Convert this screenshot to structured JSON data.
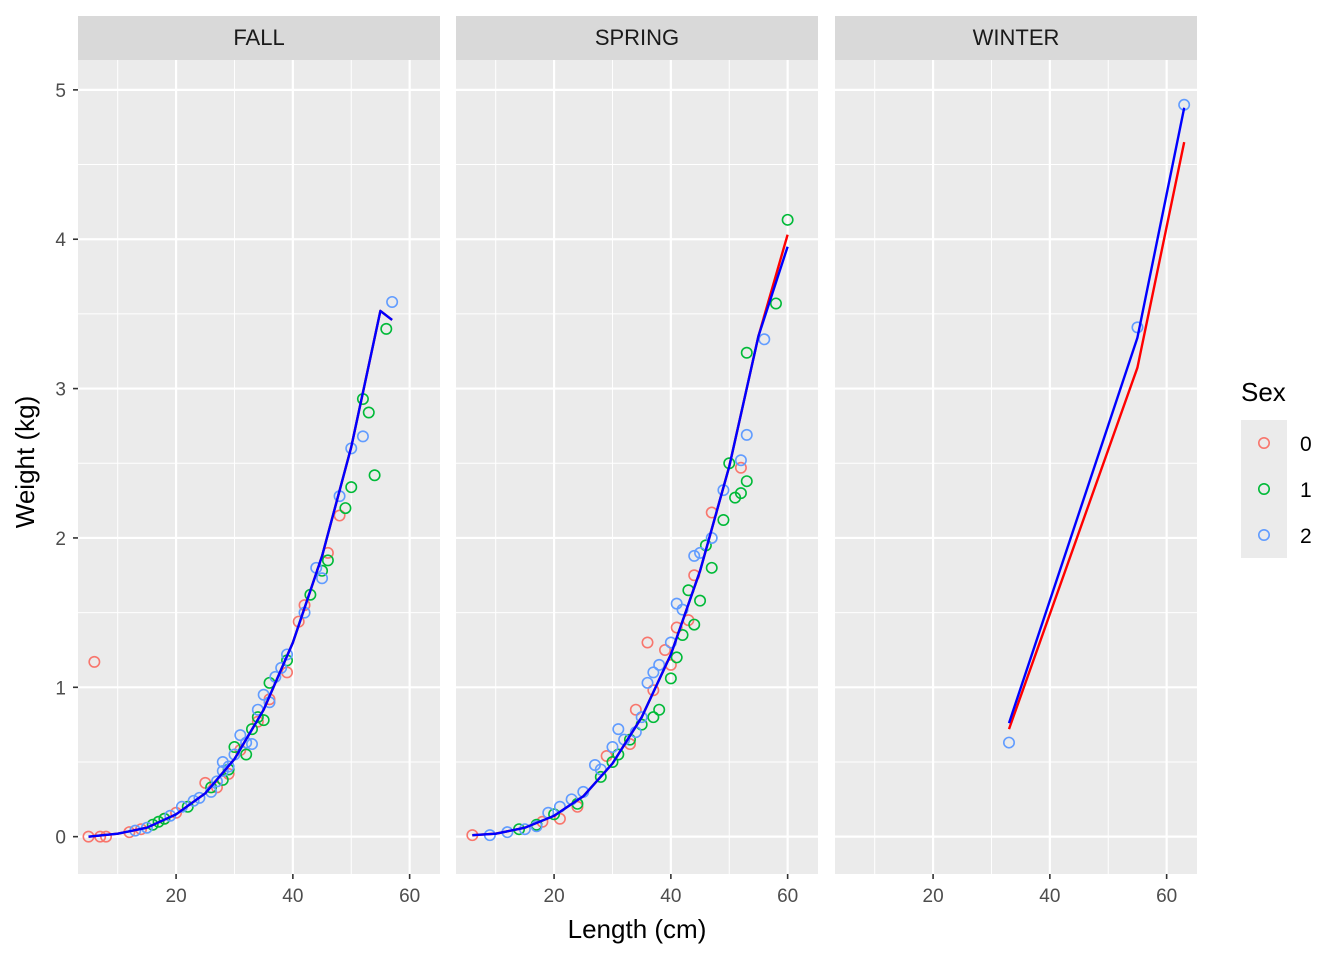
{
  "chart_data": {
    "type": "scatter",
    "xlabel": "Length (cm)",
    "ylabel": "Weight (kg)",
    "xlim": [
      3.2,
      65.2
    ],
    "ylim": [
      -0.25,
      5.2
    ],
    "x_ticks": [
      20,
      40,
      60
    ],
    "y_ticks": [
      0,
      1,
      2,
      3,
      4,
      5
    ],
    "grid": true,
    "legend": {
      "title": "Sex",
      "position": "right",
      "entries": [
        {
          "label": "0",
          "color": "#F8766D"
        },
        {
          "label": "1",
          "color": "#00BA38"
        },
        {
          "label": "2",
          "color": "#619CFF"
        }
      ]
    },
    "fit_colors": {
      "red": "#FF0000",
      "blue": "#0000FF"
    },
    "facets": [
      {
        "strip": "FALL",
        "points": {
          "0": [
            [
              6,
              1.17
            ],
            [
              5,
              0
            ],
            [
              7,
              0
            ],
            [
              8,
              0
            ],
            [
              12,
              0.03
            ],
            [
              14,
              0.05
            ],
            [
              18,
              0.12
            ],
            [
              20,
              0.16
            ],
            [
              25,
              0.36
            ],
            [
              27,
              0.33
            ],
            [
              29,
              0.42
            ],
            [
              31,
              0.58
            ],
            [
              34,
              0.77
            ],
            [
              36,
              0.92
            ],
            [
              39,
              1.1
            ],
            [
              41,
              1.44
            ],
            [
              42,
              1.55
            ],
            [
              46,
              1.9
            ],
            [
              48,
              2.15
            ]
          ],
          "1": [
            [
              16,
              0.08
            ],
            [
              17,
              0.1
            ],
            [
              18,
              0.12
            ],
            [
              22,
              0.2
            ],
            [
              26,
              0.33
            ],
            [
              28,
              0.38
            ],
            [
              29,
              0.45
            ],
            [
              30,
              0.6
            ],
            [
              32,
              0.55
            ],
            [
              33,
              0.72
            ],
            [
              34,
              0.8
            ],
            [
              35,
              0.78
            ],
            [
              36,
              1.03
            ],
            [
              39,
              1.18
            ],
            [
              43,
              1.62
            ],
            [
              45,
              1.78
            ],
            [
              46,
              1.85
            ],
            [
              49,
              2.2
            ],
            [
              50,
              2.34
            ],
            [
              52,
              2.93
            ],
            [
              53,
              2.84
            ],
            [
              54,
              2.42
            ],
            [
              56,
              3.4
            ]
          ],
          "2": [
            [
              13,
              0.04
            ],
            [
              15,
              0.06
            ],
            [
              19,
              0.14
            ],
            [
              21,
              0.2
            ],
            [
              23,
              0.24
            ],
            [
              24,
              0.26
            ],
            [
              26,
              0.3
            ],
            [
              27,
              0.37
            ],
            [
              28,
              0.44
            ],
            [
              28,
              0.5
            ],
            [
              29,
              0.47
            ],
            [
              30,
              0.55
            ],
            [
              31,
              0.68
            ],
            [
              32,
              0.63
            ],
            [
              33,
              0.62
            ],
            [
              34,
              0.85
            ],
            [
              35,
              0.95
            ],
            [
              36,
              0.9
            ],
            [
              37,
              1.07
            ],
            [
              38,
              1.13
            ],
            [
              39,
              1.22
            ],
            [
              42,
              1.5
            ],
            [
              44,
              1.8
            ],
            [
              45,
              1.73
            ],
            [
              48,
              2.28
            ],
            [
              50,
              2.6
            ],
            [
              52,
              2.68
            ],
            [
              57,
              3.58
            ]
          ]
        },
        "fit_red": {
          "x": [
            5,
            10,
            15,
            20,
            25,
            30,
            35,
            40,
            45,
            50,
            55,
            57
          ],
          "y": [
            0.0,
            0.02,
            0.06,
            0.15,
            0.29,
            0.52,
            0.85,
            1.3,
            1.88,
            2.61,
            3.52,
            3.46
          ]
        },
        "fit_blue": {
          "x": [
            5,
            10,
            15,
            20,
            25,
            30,
            35,
            40,
            45,
            50,
            55,
            57
          ],
          "y": [
            0.0,
            0.02,
            0.06,
            0.15,
            0.29,
            0.52,
            0.85,
            1.3,
            1.88,
            2.61,
            3.52,
            3.46
          ]
        }
      },
      {
        "strip": "SPRING",
        "points": {
          "0": [
            [
              6,
              0.01
            ],
            [
              18,
              0.1
            ],
            [
              21,
              0.12
            ],
            [
              24,
              0.2
            ],
            [
              29,
              0.54
            ],
            [
              33,
              0.62
            ],
            [
              34,
              0.85
            ],
            [
              36,
              1.3
            ],
            [
              37,
              0.98
            ],
            [
              39,
              1.25
            ],
            [
              40,
              1.15
            ],
            [
              41,
              1.4
            ],
            [
              43,
              1.45
            ],
            [
              44,
              1.75
            ],
            [
              47,
              2.17
            ],
            [
              52,
              2.47
            ]
          ],
          "1": [
            [
              14,
              0.05
            ],
            [
              17,
              0.08
            ],
            [
              20,
              0.15
            ],
            [
              24,
              0.22
            ],
            [
              28,
              0.4
            ],
            [
              30,
              0.5
            ],
            [
              31,
              0.55
            ],
            [
              33,
              0.65
            ],
            [
              35,
              0.75
            ],
            [
              37,
              0.8
            ],
            [
              38,
              0.85
            ],
            [
              40,
              1.06
            ],
            [
              41,
              1.2
            ],
            [
              42,
              1.35
            ],
            [
              43,
              1.65
            ],
            [
              44,
              1.42
            ],
            [
              45,
              1.58
            ],
            [
              46,
              1.95
            ],
            [
              47,
              1.8
            ],
            [
              49,
              2.12
            ],
            [
              50,
              2.5
            ],
            [
              51,
              2.27
            ],
            [
              52,
              2.3
            ],
            [
              53,
              2.38
            ],
            [
              53,
              3.24
            ],
            [
              58,
              3.57
            ],
            [
              60,
              4.13
            ]
          ],
          "2": [
            [
              9,
              0.01
            ],
            [
              12,
              0.03
            ],
            [
              15,
              0.05
            ],
            [
              17,
              0.07
            ],
            [
              19,
              0.16
            ],
            [
              21,
              0.2
            ],
            [
              23,
              0.25
            ],
            [
              25,
              0.3
            ],
            [
              27,
              0.48
            ],
            [
              28,
              0.45
            ],
            [
              30,
              0.6
            ],
            [
              31,
              0.72
            ],
            [
              32,
              0.65
            ],
            [
              34,
              0.7
            ],
            [
              35,
              0.8
            ],
            [
              36,
              1.03
            ],
            [
              37,
              1.1
            ],
            [
              38,
              1.15
            ],
            [
              40,
              1.3
            ],
            [
              41,
              1.56
            ],
            [
              42,
              1.52
            ],
            [
              44,
              1.88
            ],
            [
              45,
              1.9
            ],
            [
              47,
              2.0
            ],
            [
              49,
              2.32
            ],
            [
              52,
              2.52
            ],
            [
              53,
              2.69
            ],
            [
              56,
              3.33
            ]
          ]
        },
        "fit_red": {
          "x": [
            6,
            10,
            15,
            20,
            25,
            30,
            35,
            40,
            45,
            50,
            55,
            60
          ],
          "y": [
            0.01,
            0.02,
            0.06,
            0.14,
            0.27,
            0.49,
            0.8,
            1.22,
            1.78,
            2.48,
            3.35,
            4.03
          ]
        },
        "fit_blue": {
          "x": [
            6,
            10,
            15,
            20,
            25,
            30,
            35,
            40,
            45,
            50,
            55,
            60
          ],
          "y": [
            0.01,
            0.02,
            0.06,
            0.14,
            0.27,
            0.49,
            0.8,
            1.22,
            1.78,
            2.48,
            3.35,
            3.95
          ]
        }
      },
      {
        "strip": "WINTER",
        "points": {
          "0": [],
          "1": [],
          "2": [
            [
              33,
              0.63
            ],
            [
              55,
              3.41
            ],
            [
              63,
              4.9
            ]
          ]
        },
        "fit_red": {
          "x": [
            33,
            55,
            63
          ],
          "y": [
            0.72,
            3.14,
            4.65
          ]
        },
        "fit_blue": {
          "x": [
            33,
            55,
            63
          ],
          "y": [
            0.76,
            3.34,
            4.88
          ]
        }
      }
    ]
  }
}
